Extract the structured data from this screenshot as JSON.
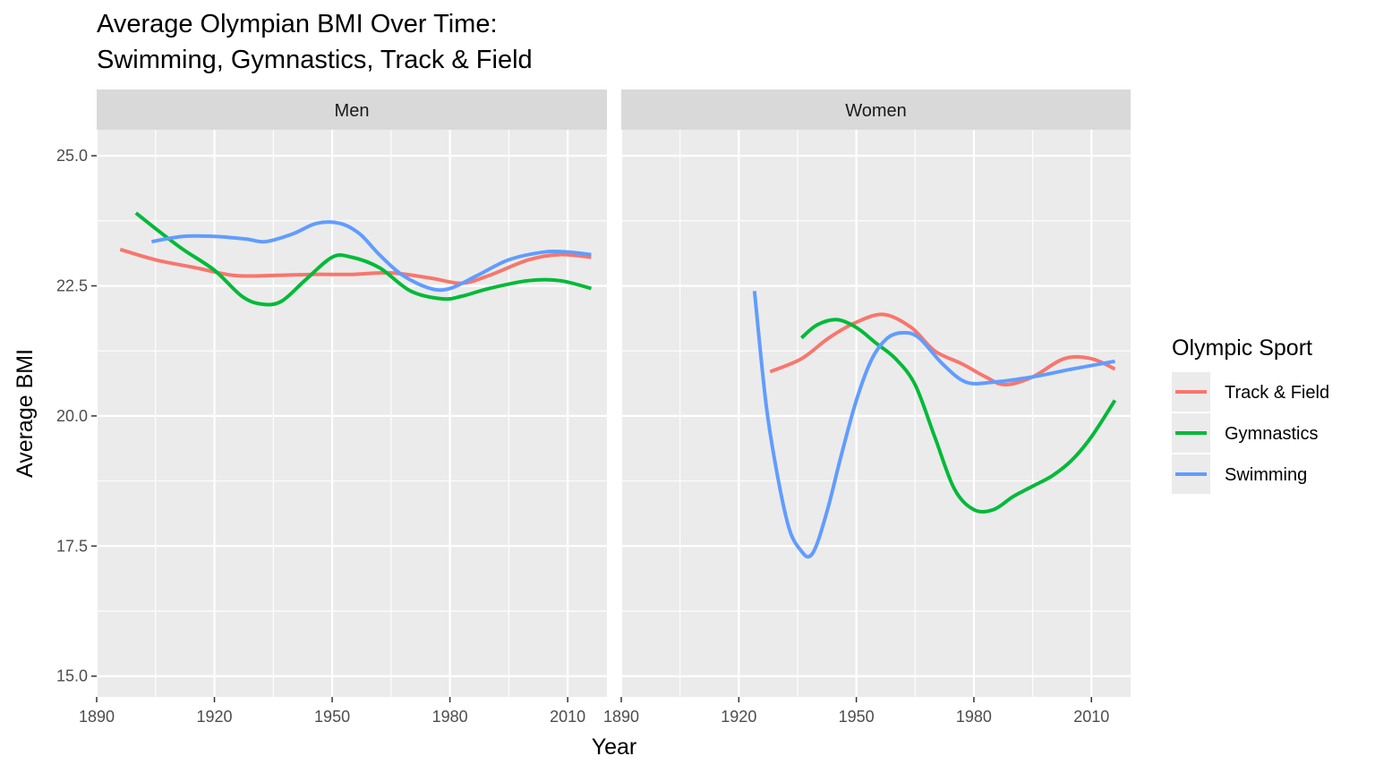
{
  "chart_data": {
    "type": "line",
    "title_lines": [
      "Average Olympian BMI Over Time:",
      "Swimming, Gymnastics, Track & Field"
    ],
    "xlabel": "Year",
    "ylabel": "Average BMI",
    "xlim": [
      1890,
      2020
    ],
    "ylim": [
      14.6,
      25.5
    ],
    "x_ticks": [
      1890,
      1920,
      1950,
      1980,
      2010
    ],
    "x_tick_labels": [
      "1890",
      "1920",
      "1950",
      "1980",
      "2010"
    ],
    "y_ticks": [
      15.0,
      17.5,
      20.0,
      22.5,
      25.0
    ],
    "y_tick_labels": [
      "15.0",
      "17.5",
      "20.0",
      "22.5",
      "25.0"
    ],
    "grid": true,
    "legend": {
      "title": "Olympic Sport",
      "position": "right",
      "entries": [
        "Track & Field",
        "Gymnastics",
        "Swimming"
      ]
    },
    "series_colors": {
      "Track & Field": "#F8766D",
      "Gymnastics": "#00BA38",
      "Swimming": "#619CFF"
    },
    "panels": [
      {
        "label": "Men",
        "series": [
          {
            "name": "Track & Field",
            "x": [
              1896,
              1905,
              1915,
              1925,
              1935,
              1945,
              1955,
              1965,
              1975,
              1983,
              1990,
              2000,
              2008,
              2016
            ],
            "y": [
              23.2,
              23.0,
              22.85,
              22.7,
              22.7,
              22.72,
              22.72,
              22.75,
              22.65,
              22.55,
              22.7,
              23.0,
              23.1,
              23.05
            ]
          },
          {
            "name": "Gymnastics",
            "x": [
              1900,
              1905,
              1912,
              1920,
              1927,
              1932,
              1937,
              1943,
              1950,
              1955,
              1962,
              1970,
              1978,
              1983,
              1990,
              2000,
              2008,
              2016
            ],
            "y": [
              23.9,
              23.6,
              23.2,
              22.8,
              22.3,
              22.15,
              22.2,
              22.6,
              23.05,
              23.05,
              22.85,
              22.4,
              22.25,
              22.3,
              22.45,
              22.6,
              22.6,
              22.45
            ]
          },
          {
            "name": "Swimming",
            "x": [
              1904,
              1912,
              1920,
              1928,
              1933,
              1940,
              1946,
              1952,
              1957,
              1962,
              1968,
              1975,
              1980,
              1987,
              1995,
              2004,
              2010,
              2016
            ],
            "y": [
              23.35,
              23.45,
              23.45,
              23.4,
              23.35,
              23.5,
              23.7,
              23.7,
              23.5,
              23.1,
              22.7,
              22.45,
              22.45,
              22.7,
              23.0,
              23.15,
              23.15,
              23.1
            ]
          }
        ]
      },
      {
        "label": "Women",
        "series": [
          {
            "name": "Track & Field",
            "x": [
              1928,
              1936,
              1943,
              1950,
              1957,
              1964,
              1970,
              1977,
              1983,
              1988,
              1995,
              2003,
              2010,
              2016
            ],
            "y": [
              20.85,
              21.1,
              21.5,
              21.8,
              21.95,
              21.7,
              21.25,
              21.0,
              20.75,
              20.6,
              20.75,
              21.1,
              21.1,
              20.9
            ]
          },
          {
            "name": "Gymnastics",
            "x": [
              1936,
              1940,
              1945,
              1950,
              1955,
              1960,
              1965,
              1970,
              1975,
              1980,
              1985,
              1990,
              1995,
              2000,
              2005,
              2010,
              2016
            ],
            "y": [
              21.5,
              21.75,
              21.85,
              21.7,
              21.4,
              21.1,
              20.6,
              19.6,
              18.6,
              18.2,
              18.2,
              18.45,
              18.65,
              18.85,
              19.15,
              19.6,
              20.3
            ]
          },
          {
            "name": "Swimming",
            "x": [
              1924,
              1927,
              1930,
              1933,
              1936,
              1938,
              1940,
              1943,
              1946,
              1950,
              1954,
              1958,
              1962,
              1966,
              1972,
              1978,
              1985,
              1995,
              2005,
              2016
            ],
            "y": [
              22.4,
              20.2,
              18.8,
              17.8,
              17.4,
              17.3,
              17.55,
              18.3,
              19.2,
              20.3,
              21.1,
              21.5,
              21.6,
              21.5,
              21.0,
              20.65,
              20.65,
              20.75,
              20.9,
              21.05
            ]
          }
        ]
      }
    ]
  }
}
